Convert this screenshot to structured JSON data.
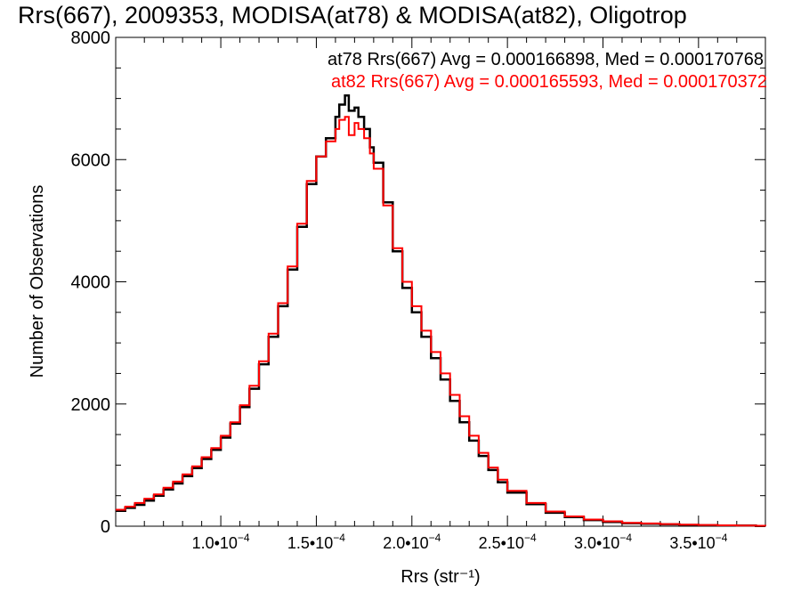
{
  "chart_data": {
    "type": "line",
    "title": "Rrs(667), 2009353, MODISA(at78) & MODISA(at82), Oligotrop",
    "xlabel": "Rrs (str⁻¹)",
    "ylabel": "Number of Observations",
    "xlim": [
      4.5e-05,
      0.000385
    ],
    "ylim": [
      0,
      8000
    ],
    "x_ticks": [
      {
        "value": 0.0001,
        "mant": "1.0•10",
        "exp": "−4"
      },
      {
        "value": 0.00015,
        "mant": "1.5•10",
        "exp": "−4"
      },
      {
        "value": 0.0002,
        "mant": "2.0•10",
        "exp": "−4"
      },
      {
        "value": 0.00025,
        "mant": "2.5•10",
        "exp": "−4"
      },
      {
        "value": 0.0003,
        "mant": "3.0•10",
        "exp": "−4"
      },
      {
        "value": 0.00035,
        "mant": "3.5•10",
        "exp": "−4"
      }
    ],
    "y_ticks": [
      {
        "value": 0,
        "label": "0"
      },
      {
        "value": 2000,
        "label": "2000"
      },
      {
        "value": 4000,
        "label": "4000"
      },
      {
        "value": 6000,
        "label": "6000"
      },
      {
        "value": 8000,
        "label": "8000"
      }
    ],
    "legend": [
      {
        "text": "at78 Rrs(667) Avg = 0.000166898, Med = 0.000170768",
        "color": "#000000"
      },
      {
        "text": "at82 Rrs(667) Avg = 0.000165593, Med = 0.000170372",
        "color": "#ff0000"
      }
    ],
    "legend_position": "top-right",
    "grid": false,
    "series": [
      {
        "color": "#000000",
        "x": [
          4.5e-05,
          5e-05,
          5.5e-05,
          6e-05,
          6.5e-05,
          7e-05,
          7.5e-05,
          8e-05,
          8.5e-05,
          9e-05,
          9.5e-05,
          0.0001,
          0.000105,
          0.00011,
          0.000115,
          0.00012,
          0.000125,
          0.00013,
          0.000135,
          0.00014,
          0.000145,
          0.00015,
          0.000155,
          0.00016,
          0.000162,
          0.000165,
          0.000167,
          0.00017,
          0.000172,
          0.000175,
          0.000178,
          0.00018,
          0.000185,
          0.00019,
          0.000195,
          0.0002,
          0.000205,
          0.00021,
          0.000215,
          0.00022,
          0.000225,
          0.00023,
          0.000235,
          0.00024,
          0.000245,
          0.00025,
          0.00026,
          0.00027,
          0.00028,
          0.00029,
          0.0003,
          0.00031,
          0.00032,
          0.00033,
          0.00034,
          0.00035,
          0.00036,
          0.00037,
          0.00038,
          0.000385
        ],
        "y": [
          250,
          300,
          350,
          420,
          500,
          600,
          700,
          820,
          950,
          1100,
          1250,
          1450,
          1680,
          1950,
          2250,
          2650,
          3100,
          3600,
          4200,
          4900,
          5600,
          6050,
          6350,
          6700,
          6900,
          7050,
          6800,
          6850,
          6700,
          6500,
          6200,
          5950,
          5300,
          4500,
          3900,
          3500,
          3100,
          2750,
          2400,
          2050,
          1700,
          1400,
          1150,
          920,
          720,
          550,
          360,
          220,
          150,
          100,
          70,
          50,
          40,
          30,
          20,
          15,
          10,
          10,
          5,
          5
        ]
      },
      {
        "color": "#ff0000",
        "x": [
          4.5e-05,
          5e-05,
          5.5e-05,
          6e-05,
          6.5e-05,
          7e-05,
          7.5e-05,
          8e-05,
          8.5e-05,
          9e-05,
          9.5e-05,
          0.0001,
          0.000105,
          0.00011,
          0.000115,
          0.00012,
          0.000125,
          0.00013,
          0.000135,
          0.00014,
          0.000145,
          0.00015,
          0.000155,
          0.00016,
          0.000162,
          0.000165,
          0.000167,
          0.00017,
          0.000172,
          0.000175,
          0.000178,
          0.00018,
          0.000185,
          0.00019,
          0.000195,
          0.0002,
          0.000205,
          0.00021,
          0.000215,
          0.00022,
          0.000225,
          0.00023,
          0.000235,
          0.00024,
          0.000245,
          0.00025,
          0.00026,
          0.00027,
          0.00028,
          0.00029,
          0.0003,
          0.00031,
          0.00032,
          0.00033,
          0.00034,
          0.00035,
          0.00036,
          0.00037,
          0.00038,
          0.000385
        ],
        "y": [
          270,
          320,
          380,
          450,
          520,
          630,
          730,
          850,
          980,
          1130,
          1280,
          1480,
          1700,
          1980,
          2300,
          2700,
          3150,
          3650,
          4250,
          4950,
          5650,
          6050,
          6300,
          6500,
          6650,
          6700,
          6400,
          6600,
          6500,
          6350,
          6100,
          5850,
          5250,
          4550,
          4000,
          3600,
          3200,
          2850,
          2500,
          2150,
          1800,
          1480,
          1200,
          960,
          760,
          580,
          380,
          240,
          160,
          110,
          80,
          55,
          45,
          35,
          25,
          20,
          15,
          10,
          8,
          5
        ]
      }
    ]
  }
}
